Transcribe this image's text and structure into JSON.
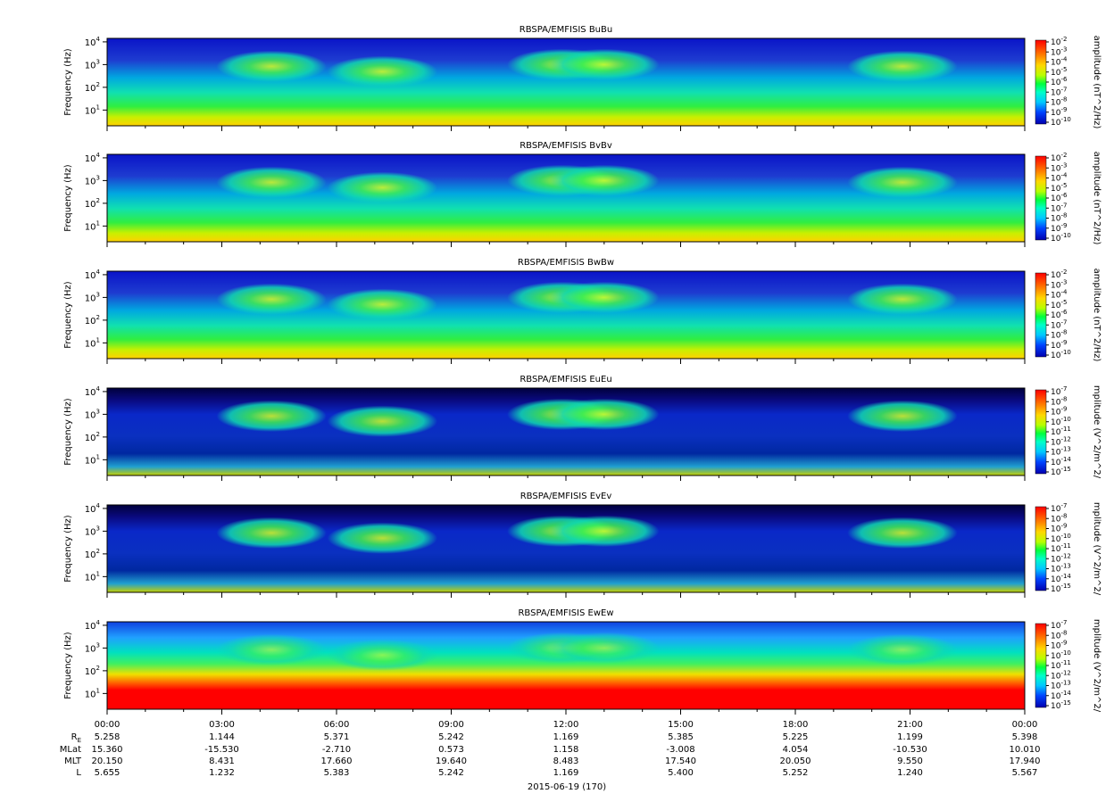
{
  "chart_data": {
    "type": "heatmap",
    "panels": [
      {
        "title": "RBSPA/EMFISIS  BuBu",
        "ylabel": "Frequency (Hz)",
        "cbar_label": "amplitude (nT^2/Hz)",
        "cbar_ticks": [
          "10-2",
          "10-3",
          "10-4",
          "10-5",
          "10-6",
          "10-7",
          "10-8",
          "10-9",
          "10-10"
        ],
        "style": "b"
      },
      {
        "title": "RBSPA/EMFISIS  BvBv",
        "ylabel": "Frequency (Hz)",
        "cbar_label": "amplitude (nT^2/Hz)",
        "cbar_ticks": [
          "10-2",
          "10-3",
          "10-4",
          "10-5",
          "10-6",
          "10-7",
          "10-8",
          "10-9",
          "10-10"
        ],
        "style": "b"
      },
      {
        "title": "RBSPA/EMFISIS  BwBw",
        "ylabel": "Frequency (Hz)",
        "cbar_label": "amplitude (nT^2/Hz)",
        "cbar_ticks": [
          "10-2",
          "10-3",
          "10-4",
          "10-5",
          "10-6",
          "10-7",
          "10-8",
          "10-9",
          "10-10"
        ],
        "style": "b"
      },
      {
        "title": "RBSPA/EMFISIS  EuEu",
        "ylabel": "Frequency (Hz)",
        "cbar_label": "mplitude (V^2/m^2/",
        "cbar_ticks": [
          "10-7",
          "10-8",
          "10-9",
          "10-10",
          "10-11",
          "10-12",
          "10-13",
          "10-14",
          "10-15"
        ],
        "style": "e"
      },
      {
        "title": "RBSPA/EMFISIS  EvEv",
        "ylabel": "Frequency (Hz)",
        "cbar_label": "mplitude (V^2/m^2/",
        "cbar_ticks": [
          "10-7",
          "10-8",
          "10-9",
          "10-10",
          "10-11",
          "10-12",
          "10-13",
          "10-14",
          "10-15"
        ],
        "style": "e"
      },
      {
        "title": "RBSPA/EMFISIS  EwEw",
        "ylabel": "Frequency (Hz)",
        "cbar_label": "mplitude (V^2/m^2/",
        "cbar_ticks": [
          "10-7",
          "10-8",
          "10-9",
          "10-10",
          "10-11",
          "10-12",
          "10-13",
          "10-14",
          "10-15"
        ],
        "style": "w"
      }
    ],
    "y_ticks": [
      "10^4",
      "10^3",
      "10^2",
      "10^1"
    ],
    "y_scale": "log",
    "x_ticks": [
      "00:00",
      "03:00",
      "06:00",
      "09:00",
      "12:00",
      "15:00",
      "18:00",
      "21:00",
      "00:00"
    ],
    "ephemeris": {
      "labels": [
        "R_E",
        "MLat",
        "MLT",
        "L"
      ],
      "rows": [
        [
          "5.258",
          "1.144",
          "5.371",
          "5.242",
          "1.169",
          "5.385",
          "5.225",
          "1.199",
          "5.398"
        ],
        [
          "15.360",
          "-15.530",
          "-2.710",
          "0.573",
          "1.158",
          "-3.008",
          "4.054",
          "-10.530",
          "10.010"
        ],
        [
          "20.150",
          "8.431",
          "17.660",
          "19.640",
          "8.483",
          "17.540",
          "20.050",
          "9.550",
          "17.940"
        ],
        [
          "5.655",
          "1.232",
          "5.383",
          "5.242",
          "1.169",
          "5.400",
          "5.252",
          "1.240",
          "5.567"
        ]
      ]
    },
    "xlabel": "2015-06-19 (170)"
  }
}
